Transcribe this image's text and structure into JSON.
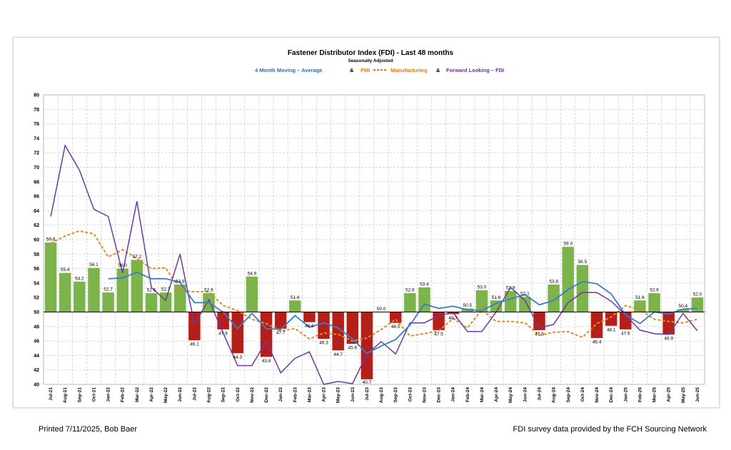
{
  "colors": {
    "bar_positive": "#7cb34a",
    "bar_negative": "#b41f19",
    "moving_average": "#3b7cc4",
    "pmi": "#e08a2a",
    "forward_looking": "#6b3a9e",
    "legend_blue": "#2e6db4",
    "legend_orange": "#e07b1a",
    "legend_purple": "#6b2f9a"
  },
  "legend": {
    "ma_label": "4 Month Moving – Average",
    "amp1": "&",
    "pmi_label": "PMI",
    "manufacturing_label": "Manufacturing",
    "amp2": "&",
    "forward_label": "Forward Looking – FDI"
  },
  "footer": {
    "left": "Printed 7/11/2025, Bob Baer",
    "right": "FDI survey data provided by the FCH Sourcing Network"
  },
  "chart_data": {
    "type": "bar",
    "title": "Fastener Distributor Index (FDI) - Last 48 months",
    "subtitle": "Seasonally Adjusted",
    "ylim": [
      40,
      80
    ],
    "ytick_step": 2,
    "baseline": 50,
    "grid": true,
    "categories": [
      "Jul-21",
      "Aug-21",
      "Sep-21",
      "Oct-21",
      "Jan-22",
      "Feb-22",
      "Mar-22",
      "Apr-22",
      "May-22",
      "Jun-22",
      "Jul-22",
      "Aug-22",
      "Sep-22",
      "Oct-22",
      "Nov-22",
      "Dec-22",
      "Jan-23",
      "Feb-23",
      "Mar-23",
      "Apr-23",
      "May-23",
      "Jun-23",
      "Jul-23",
      "Aug-23",
      "Sep-23",
      "Oct-23",
      "Nov-23",
      "Dec-23",
      "Jan-24",
      "Feb-24",
      "Mar-24",
      "Apr-24",
      "May-24",
      "Jun-24",
      "Jul-24",
      "Aug-24",
      "Sep-24",
      "Oct-24",
      "Nov-24",
      "Dec-24",
      "Jan-25",
      "Feb-25",
      "Mar-25",
      "Apr-25",
      "May-25",
      "Jun-25"
    ],
    "series": [
      {
        "type": "bar",
        "values": [
          59.6,
          55.4,
          54.2,
          56.1,
          52.7,
          56.0,
          57.2,
          52.6,
          52.7,
          53.8,
          46.1,
          52.6,
          47.6,
          44.3,
          54.9,
          43.8,
          47.7,
          51.6,
          48.6,
          46.3,
          44.7,
          45.6,
          40.7,
          50.0,
          48.5,
          52.6,
          53.4,
          47.5,
          49.7,
          50.5,
          53.0,
          51.6,
          52.9,
          52.1,
          47.5,
          53.8,
          59.0,
          56.5,
          46.4,
          48.1,
          47.6,
          51.6,
          52.6,
          46.9,
          50.4,
          52.0
        ],
        "labels": [
          "59.6",
          "55.4",
          "54.2",
          "56.1",
          "52.7",
          "56.0",
          "57.2",
          "52.6",
          "52.7",
          "53.8",
          "46.1",
          "52.6",
          "47.6",
          "44.3",
          "54.9",
          "43.8",
          "47.7",
          "51.6",
          "48.6",
          "46.3",
          "44.7",
          "45.6",
          "40.7",
          "50.0",
          "48.5",
          "52.6",
          "53.4",
          "47.5",
          "49.7",
          "50.5",
          "53.0",
          "51.6",
          "52.9",
          "52.1",
          "47.5",
          "53.8",
          "59.0",
          "56.5",
          "46.4",
          "48.1",
          "47.6",
          "51.6",
          "52.6",
          "46.9",
          "50.4",
          "52.0"
        ]
      },
      {
        "type": "line",
        "values": [
          null,
          null,
          null,
          null,
          54.6,
          54.7,
          55.5,
          54.6,
          54.6,
          54.1,
          51.3,
          51.3,
          50.0,
          47.7,
          49.8,
          47.7,
          47.6,
          49.5,
          47.9,
          48.5,
          47.8,
          46.3,
          44.3,
          45.3,
          46.2,
          48.2,
          51.1,
          50.5,
          50.8,
          50.3,
          50.2,
          51.2,
          51.8,
          52.4,
          51.0,
          51.6,
          53.1,
          54.2,
          53.9,
          52.5,
          49.6,
          48.4,
          50.0,
          49.7,
          50.4,
          50.5
        ]
      },
      {
        "type": "line",
        "values": [
          59.5,
          60.5,
          61.2,
          60.8,
          57.6,
          58.6,
          57.4,
          56.0,
          56.1,
          53.0,
          52.8,
          52.8,
          50.9,
          50.2,
          49.0,
          48.4,
          47.4,
          47.7,
          46.3,
          47.1,
          46.9,
          46.0,
          46.4,
          47.6,
          49.0,
          46.7,
          47.0,
          47.4,
          49.1,
          47.8,
          50.3,
          48.7,
          48.7,
          48.5,
          46.8,
          47.2,
          47.3,
          46.5,
          48.4,
          49.3,
          50.9,
          50.3,
          49.0,
          48.7,
          48.5,
          49.0
        ]
      },
      {
        "type": "line",
        "values": [
          63.2,
          73.0,
          69.6,
          64.2,
          63.2,
          55.4,
          65.3,
          53.4,
          51.6,
          58.0,
          48.3,
          51.7,
          47.1,
          42.6,
          42.6,
          46.0,
          41.6,
          43.6,
          44.5,
          38.4,
          40.4,
          40.1,
          44.2,
          45.9,
          44.2,
          48.5,
          48.5,
          49.5,
          49.9,
          47.3,
          47.3,
          50.0,
          53.4,
          51.6,
          47.8,
          48.3,
          51.3,
          52.7,
          52.7,
          51.5,
          49.6,
          47.5,
          47.0,
          46.9,
          49.8,
          47.4
        ]
      }
    ]
  }
}
